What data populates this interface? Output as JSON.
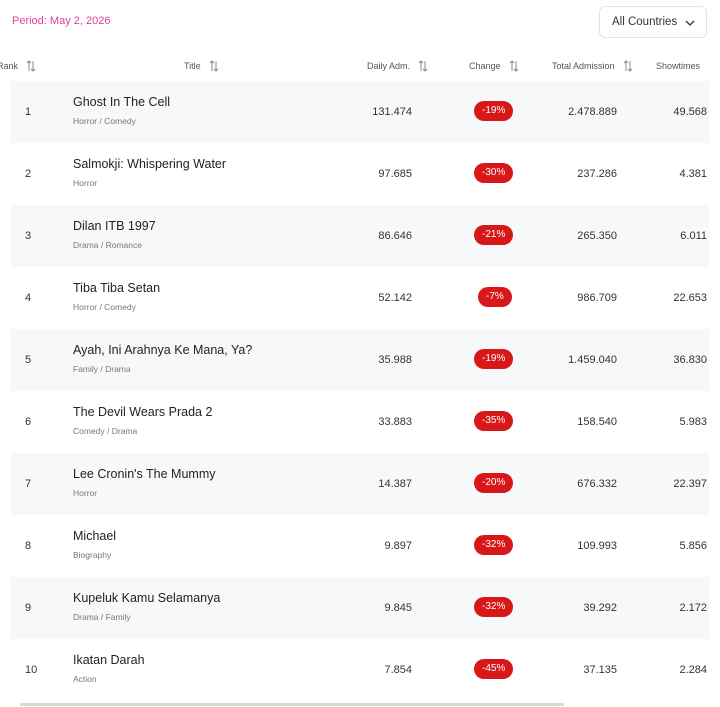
{
  "period": "Period: May 2, 2026",
  "country_filter": "All Countries",
  "columns": {
    "rank": "Rank",
    "title": "Title",
    "daily": "Daily Adm.",
    "change": "Change",
    "total": "Total Admission",
    "showtimes": "Showtimes"
  },
  "rows": [
    {
      "rank": "1",
      "title": "Ghost In The Cell",
      "genre": "Horror / Comedy",
      "daily": "131.474",
      "change": "-19%",
      "total": "2.478.889",
      "showtimes": "49.568"
    },
    {
      "rank": "2",
      "title": "Salmokji: Whispering Water",
      "genre": "Horror",
      "daily": "97.685",
      "change": "-30%",
      "total": "237.286",
      "showtimes": "4.381"
    },
    {
      "rank": "3",
      "title": "Dilan ITB 1997",
      "genre": "Drama / Romance",
      "daily": "86.646",
      "change": "-21%",
      "total": "265.350",
      "showtimes": "6.011"
    },
    {
      "rank": "4",
      "title": "Tiba Tiba Setan",
      "genre": "Horror / Comedy",
      "daily": "52.142",
      "change": "-7%",
      "total": "986.709",
      "showtimes": "22.653"
    },
    {
      "rank": "5",
      "title": "Ayah, Ini Arahnya Ke Mana, Ya?",
      "genre": "Family / Drama",
      "daily": "35.988",
      "change": "-19%",
      "total": "1.459.040",
      "showtimes": "36.830"
    },
    {
      "rank": "6",
      "title": "The Devil Wears Prada 2",
      "genre": "Comedy / Drama",
      "daily": "33.883",
      "change": "-35%",
      "total": "158.540",
      "showtimes": "5.983"
    },
    {
      "rank": "7",
      "title": "Lee Cronin's The Mummy",
      "genre": "Horror",
      "daily": "14.387",
      "change": "-20%",
      "total": "676.332",
      "showtimes": "22.397"
    },
    {
      "rank": "8",
      "title": "Michael",
      "genre": "Biography",
      "daily": "9.897",
      "change": "-32%",
      "total": "109.993",
      "showtimes": "5.856"
    },
    {
      "rank": "9",
      "title": "Kupeluk Kamu Selamanya",
      "genre": "Drama / Family",
      "daily": "9.845",
      "change": "-32%",
      "total": "39.292",
      "showtimes": "2.172"
    },
    {
      "rank": "10",
      "title": "Ikatan Darah",
      "genre": "Action",
      "daily": "7.854",
      "change": "-45%",
      "total": "37.135",
      "showtimes": "2.284"
    }
  ],
  "colors": {
    "accent": "#e0409a",
    "negative_badge": "#d81818",
    "row_alt": "#f7f8fa"
  },
  "icons": {
    "sort": "sort-arrows-icon",
    "dropdown": "chevron-down-icon"
  }
}
